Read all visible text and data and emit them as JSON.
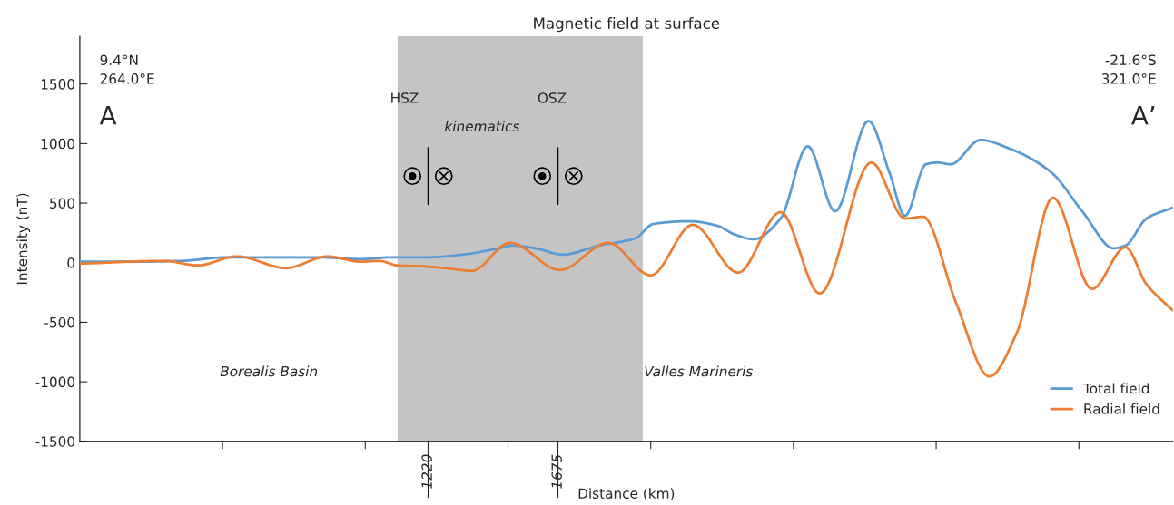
{
  "chart_data": {
    "type": "line",
    "title": "Magnetic field at surface",
    "xlabel": "Distance (km)",
    "ylabel": "Intensity (nT)",
    "xlim": [
      0,
      3829
    ],
    "ylim": [
      -1500,
      1900
    ],
    "xticks": [
      {
        "value": 500,
        "label": null
      },
      {
        "value": 1000,
        "label": null
      },
      {
        "value": 1220,
        "label": "1220"
      },
      {
        "value": 1500,
        "label": null
      },
      {
        "value": 1675,
        "label": "1675"
      },
      {
        "value": 2000,
        "label": null
      },
      {
        "value": 2500,
        "label": null
      },
      {
        "value": 3000,
        "label": null
      },
      {
        "value": 3500,
        "label": null
      }
    ],
    "yticks": [
      -1500,
      -1000,
      -500,
      0,
      500,
      1000,
      1500
    ],
    "grid": false,
    "legend": "bottom right",
    "line_style": "solid",
    "marker": "none",
    "bands": [
      {
        "axis": "x",
        "from": 1113,
        "to": 1972,
        "color": "#c4c4c4"
      }
    ],
    "annotations": [
      "9.4°N\n264.0°E",
      "A",
      "-21.6°S\n321.0°E",
      "A’",
      "HSZ",
      "OSZ",
      "kinematics",
      "Borealis Basin",
      "Valles Marineris"
    ],
    "series": [
      {
        "name": "Total field",
        "color": "#5b9bd5",
        "x": [
          0,
          197,
          356,
          515,
          674,
          833,
          986,
          1088,
          1215,
          1342,
          1469,
          1517,
          1596,
          1692,
          1819,
          1946,
          2010,
          2137,
          2232,
          2296,
          2360,
          2455,
          2550,
          2646,
          2763,
          2837,
          2891,
          2964,
          3005,
          3050,
          3155,
          3260,
          3400,
          3514,
          3622,
          3663,
          3737,
          3829
        ],
        "values": [
          8,
          8,
          15,
          45,
          45,
          45,
          30,
          45,
          45,
          68,
          121,
          144,
          121,
          68,
          144,
          205,
          326,
          348,
          311,
          235,
          197,
          371,
          977,
          432,
          1189,
          750,
          394,
          826,
          841,
          826,
          1030,
          955,
          765,
          424,
          121,
          144,
          371,
          462
        ]
      },
      {
        "name": "Radial field",
        "color": "#ed7d31",
        "x": [
          0,
          296,
          413,
          550,
          722,
          868,
          986,
          1049,
          1113,
          1199,
          1278,
          1374,
          1507,
          1682,
          1851,
          2000,
          2147,
          2306,
          2455,
          2592,
          2773,
          2891,
          2954,
          3069,
          3186,
          3282,
          3409,
          3546,
          3663,
          3737,
          3829
        ],
        "values": [
          -8,
          15,
          -23,
          53,
          -45,
          53,
          8,
          15,
          -23,
          -30,
          -45,
          -68,
          167,
          -61,
          167,
          -106,
          318,
          -83,
          424,
          -258,
          841,
          371,
          386,
          -333,
          -955,
          -591,
          545,
          -220,
          129,
          -182,
          -402
        ]
      }
    ]
  }
}
